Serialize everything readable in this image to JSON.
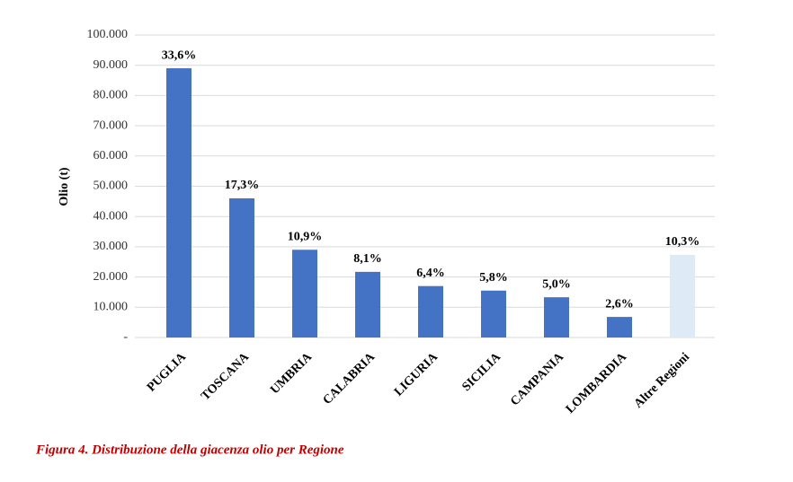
{
  "chart_data": {
    "type": "bar",
    "caption": "Figura 4. Distribuzione della giacenza olio per Regione",
    "y_label": "Olio (t)",
    "categories": [
      "PUGLIA",
      "TOSCANA",
      "UMBRIA",
      "CALABRIA",
      "LIGURIA",
      "SICILIA",
      "CAMPANIA",
      "LOMBARDIA",
      "Altre Regioni"
    ],
    "values": [
      89000,
      46000,
      29000,
      21700,
      17000,
      15500,
      13300,
      6800,
      27300
    ],
    "share_labels": [
      "33,6%",
      "17,3%",
      "10,9%",
      "8,1%",
      "6,4%",
      "5,8%",
      "5,0%",
      "2,6%",
      "10,3%"
    ],
    "colors": [
      "#4472c4",
      "#4472c4",
      "#4472c4",
      "#4472c4",
      "#4472c4",
      "#4472c4",
      "#4472c4",
      "#4472c4",
      "#deebf7"
    ],
    "ylim": [
      0,
      100000
    ],
    "yticks": [
      {
        "value": 0,
        "label": "-"
      },
      {
        "value": 10000,
        "label": "10.000"
      },
      {
        "value": 20000,
        "label": "20.000"
      },
      {
        "value": 30000,
        "label": "30.000"
      },
      {
        "value": 40000,
        "label": "40.000"
      },
      {
        "value": 50000,
        "label": "50.000"
      },
      {
        "value": 60000,
        "label": "60.000"
      },
      {
        "value": 70000,
        "label": "70.000"
      },
      {
        "value": 80000,
        "label": "80.000"
      },
      {
        "value": 90000,
        "label": "90.000"
      },
      {
        "value": 100000,
        "label": "100.000"
      }
    ],
    "grid": true
  }
}
